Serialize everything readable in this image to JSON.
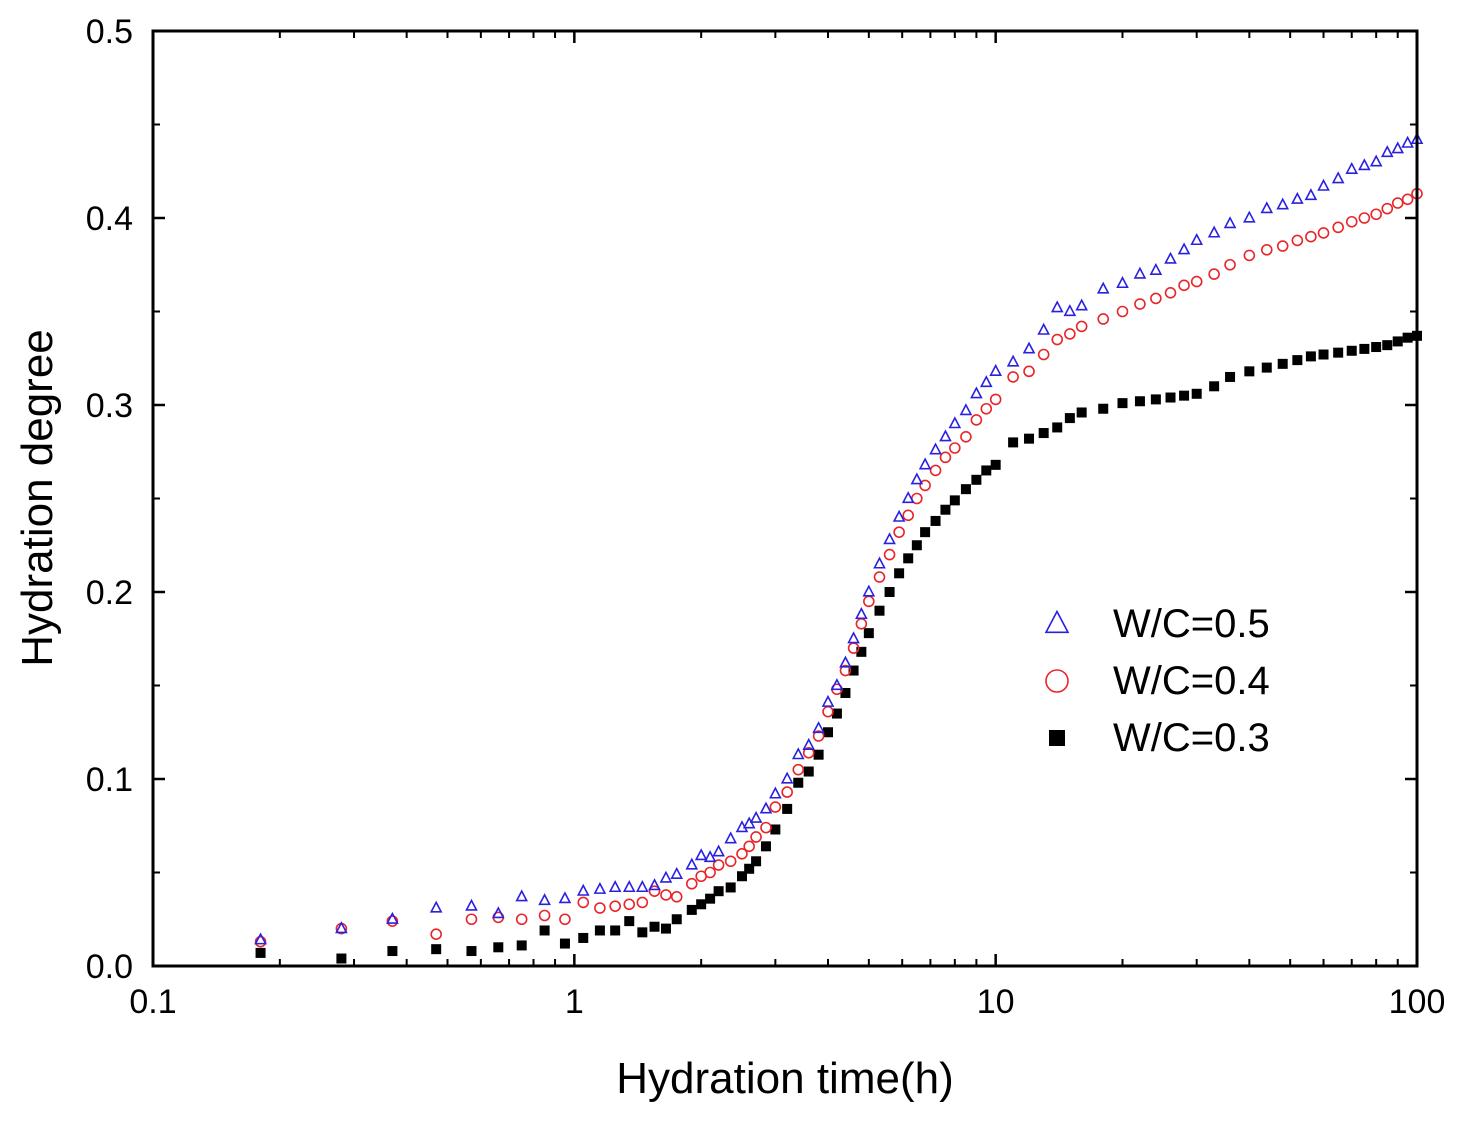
{
  "chart_data": {
    "type": "scatter",
    "xscale": "log",
    "xlim": [
      0.1,
      100
    ],
    "ylim": [
      0.0,
      0.5
    ],
    "xlabel": "Hydration time(h)",
    "ylabel": "Hydration degree",
    "xticks": [
      {
        "value": 0.1,
        "label": "0.1"
      },
      {
        "value": 1,
        "label": "1"
      },
      {
        "value": 10,
        "label": "10"
      },
      {
        "value": 100,
        "label": "100"
      }
    ],
    "yticks": [
      {
        "value": 0.0,
        "label": "0.0"
      },
      {
        "value": 0.1,
        "label": "0.1"
      },
      {
        "value": 0.2,
        "label": "0.2"
      },
      {
        "value": 0.3,
        "label": "0.3"
      },
      {
        "value": 0.4,
        "label": "0.4"
      },
      {
        "value": 0.5,
        "label": "0.5"
      }
    ],
    "legend_position": "center-right",
    "series": [
      {
        "name": "W/C=0.5",
        "marker": "triangle-open",
        "color": "#2a20e0",
        "x": [
          0.18,
          0.28,
          0.37,
          0.47,
          0.57,
          0.66,
          0.75,
          0.85,
          0.95,
          1.05,
          1.15,
          1.25,
          1.35,
          1.45,
          1.55,
          1.65,
          1.75,
          1.9,
          2.0,
          2.1,
          2.2,
          2.35,
          2.5,
          2.6,
          2.7,
          2.85,
          3.0,
          3.2,
          3.4,
          3.6,
          3.8,
          4.0,
          4.2,
          4.4,
          4.6,
          4.8,
          5.0,
          5.3,
          5.6,
          5.9,
          6.2,
          6.5,
          6.8,
          7.2,
          7.6,
          8.0,
          8.5,
          9.0,
          9.5,
          10.0,
          11.0,
          12.0,
          13.0,
          14.0,
          15.0,
          16.0,
          18.0,
          20.0,
          22.0,
          24.0,
          26.0,
          28.0,
          30.0,
          33.0,
          36.0,
          40.0,
          44.0,
          48.0,
          52.0,
          56.0,
          60.0,
          65.0,
          70.0,
          75.0,
          80.0,
          85.0,
          90.0,
          95.0,
          100.0
        ],
        "y": [
          0.014,
          0.02,
          0.025,
          0.031,
          0.032,
          0.028,
          0.037,
          0.035,
          0.036,
          0.04,
          0.041,
          0.042,
          0.042,
          0.042,
          0.043,
          0.047,
          0.049,
          0.054,
          0.059,
          0.058,
          0.061,
          0.068,
          0.074,
          0.076,
          0.079,
          0.084,
          0.092,
          0.1,
          0.113,
          0.118,
          0.127,
          0.141,
          0.15,
          0.162,
          0.175,
          0.188,
          0.2,
          0.215,
          0.228,
          0.24,
          0.25,
          0.26,
          0.268,
          0.276,
          0.283,
          0.29,
          0.297,
          0.306,
          0.312,
          0.318,
          0.323,
          0.33,
          0.34,
          0.352,
          0.35,
          0.353,
          0.362,
          0.365,
          0.37,
          0.372,
          0.378,
          0.383,
          0.388,
          0.392,
          0.397,
          0.4,
          0.405,
          0.407,
          0.41,
          0.412,
          0.417,
          0.421,
          0.426,
          0.428,
          0.43,
          0.435,
          0.437,
          0.44,
          0.442
        ]
      },
      {
        "name": "W/C=0.4",
        "marker": "circle-open",
        "color": "#e8262a",
        "x": [
          0.18,
          0.28,
          0.37,
          0.47,
          0.57,
          0.66,
          0.75,
          0.85,
          0.95,
          1.05,
          1.15,
          1.25,
          1.35,
          1.45,
          1.55,
          1.65,
          1.75,
          1.9,
          2.0,
          2.1,
          2.2,
          2.35,
          2.5,
          2.6,
          2.7,
          2.85,
          3.0,
          3.2,
          3.4,
          3.6,
          3.8,
          4.0,
          4.2,
          4.4,
          4.6,
          4.8,
          5.0,
          5.3,
          5.6,
          5.9,
          6.2,
          6.5,
          6.8,
          7.2,
          7.6,
          8.0,
          8.5,
          9.0,
          9.5,
          10.0,
          11.0,
          12.0,
          13.0,
          14.0,
          15.0,
          16.0,
          18.0,
          20.0,
          22.0,
          24.0,
          26.0,
          28.0,
          30.0,
          33.0,
          36.0,
          40.0,
          44.0,
          48.0,
          52.0,
          56.0,
          60.0,
          65.0,
          70.0,
          75.0,
          80.0,
          85.0,
          90.0,
          95.0,
          100.0
        ],
        "y": [
          0.013,
          0.02,
          0.024,
          0.017,
          0.025,
          0.026,
          0.025,
          0.027,
          0.025,
          0.034,
          0.031,
          0.032,
          0.033,
          0.034,
          0.04,
          0.038,
          0.037,
          0.044,
          0.048,
          0.05,
          0.054,
          0.056,
          0.06,
          0.064,
          0.069,
          0.074,
          0.085,
          0.093,
          0.105,
          0.114,
          0.123,
          0.136,
          0.148,
          0.158,
          0.17,
          0.183,
          0.195,
          0.208,
          0.22,
          0.232,
          0.241,
          0.25,
          0.257,
          0.265,
          0.272,
          0.277,
          0.283,
          0.292,
          0.298,
          0.303,
          0.315,
          0.318,
          0.327,
          0.335,
          0.338,
          0.342,
          0.346,
          0.35,
          0.354,
          0.357,
          0.36,
          0.364,
          0.366,
          0.37,
          0.375,
          0.38,
          0.383,
          0.385,
          0.388,
          0.39,
          0.392,
          0.395,
          0.398,
          0.4,
          0.402,
          0.405,
          0.408,
          0.41,
          0.413
        ]
      },
      {
        "name": "W/C=0.3",
        "marker": "square-filled",
        "color": "#000000",
        "x": [
          0.18,
          0.28,
          0.37,
          0.47,
          0.57,
          0.66,
          0.75,
          0.85,
          0.95,
          1.05,
          1.15,
          1.25,
          1.35,
          1.45,
          1.55,
          1.65,
          1.75,
          1.9,
          2.0,
          2.1,
          2.2,
          2.35,
          2.5,
          2.6,
          2.7,
          2.85,
          3.0,
          3.2,
          3.4,
          3.6,
          3.8,
          4.0,
          4.2,
          4.4,
          4.6,
          4.8,
          5.0,
          5.3,
          5.6,
          5.9,
          6.2,
          6.5,
          6.8,
          7.2,
          7.6,
          8.0,
          8.5,
          9.0,
          9.5,
          10.0,
          11.0,
          12.0,
          13.0,
          14.0,
          15.0,
          16.0,
          18.0,
          20.0,
          22.0,
          24.0,
          26.0,
          28.0,
          30.0,
          33.0,
          36.0,
          40.0,
          44.0,
          48.0,
          52.0,
          56.0,
          60.0,
          65.0,
          70.0,
          75.0,
          80.0,
          85.0,
          90.0,
          95.0,
          100.0
        ],
        "y": [
          0.007,
          0.004,
          0.008,
          0.009,
          0.008,
          0.01,
          0.011,
          0.019,
          0.012,
          0.015,
          0.019,
          0.019,
          0.024,
          0.018,
          0.021,
          0.02,
          0.025,
          0.03,
          0.033,
          0.036,
          0.04,
          0.042,
          0.048,
          0.052,
          0.056,
          0.064,
          0.073,
          0.084,
          0.098,
          0.104,
          0.113,
          0.125,
          0.135,
          0.146,
          0.158,
          0.168,
          0.178,
          0.19,
          0.2,
          0.21,
          0.218,
          0.225,
          0.232,
          0.238,
          0.244,
          0.249,
          0.255,
          0.26,
          0.265,
          0.268,
          0.28,
          0.282,
          0.285,
          0.288,
          0.293,
          0.296,
          0.298,
          0.301,
          0.302,
          0.303,
          0.304,
          0.305,
          0.306,
          0.31,
          0.315,
          0.318,
          0.32,
          0.322,
          0.324,
          0.326,
          0.327,
          0.328,
          0.329,
          0.33,
          0.331,
          0.332,
          0.334,
          0.336,
          0.337
        ]
      }
    ]
  }
}
